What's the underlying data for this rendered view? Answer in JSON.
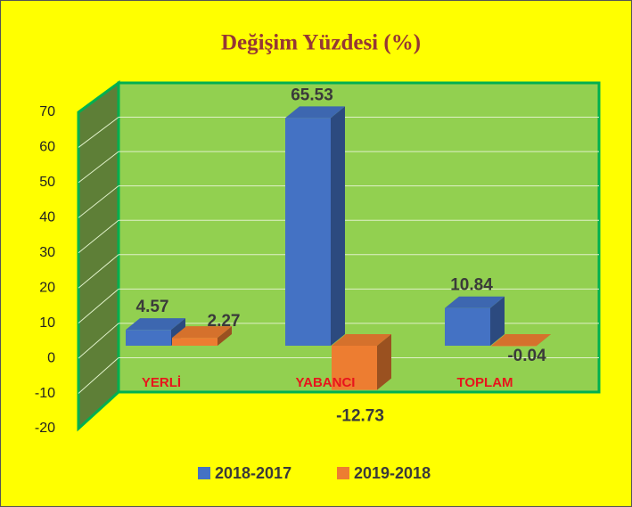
{
  "chart_data": {
    "type": "bar3d",
    "title": "Değişim Yüzdesi (%)",
    "categories": [
      "YERLİ",
      "YABANCI",
      "TOPLAM"
    ],
    "series": [
      {
        "name": "2018-2017",
        "color": "#4472c4",
        "values": [
          4.57,
          65.53,
          10.84
        ]
      },
      {
        "name": "2019-2018",
        "color": "#ed7d31",
        "values": [
          2.27,
          -12.73,
          -0.04
        ]
      }
    ],
    "ylim": [
      -20,
      70
    ],
    "yticks": [
      -20,
      -10,
      0,
      10,
      20,
      30,
      40,
      50,
      60,
      70
    ],
    "grid": true,
    "legend": "bottom"
  }
}
